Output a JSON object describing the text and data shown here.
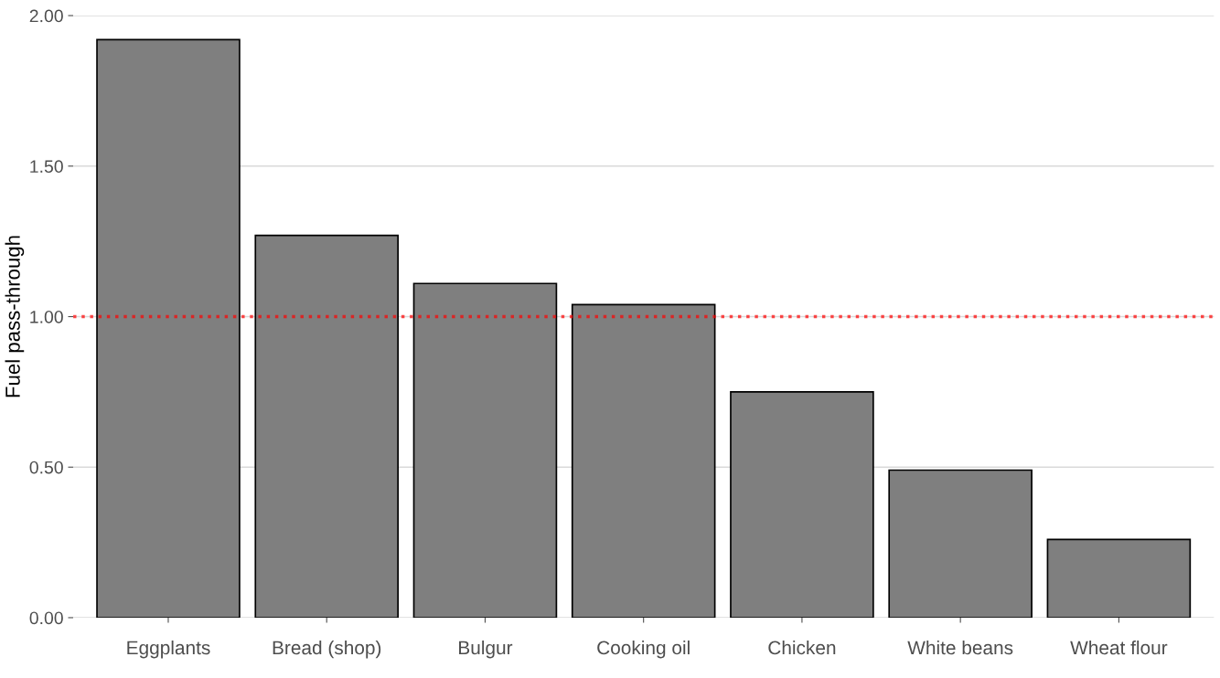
{
  "chart_data": {
    "type": "bar",
    "ylabel": "Fuel pass-through",
    "categories": [
      "Eggplants",
      "Bread (shop)",
      "Bulgur",
      "Cooking oil",
      "Chicken",
      "White beans",
      "Wheat flour"
    ],
    "values": [
      1.92,
      1.27,
      1.11,
      1.04,
      0.75,
      0.49,
      0.26
    ],
    "color": "#7f7f7f",
    "ylim": [
      0,
      2
    ],
    "yticks": [
      {
        "value": 0,
        "label": "0.00"
      },
      {
        "value": 0.5,
        "label": "0.50"
      },
      {
        "value": 1,
        "label": "1.00"
      },
      {
        "value": 1.5,
        "label": "1.50"
      },
      {
        "value": 2,
        "label": "2.00"
      }
    ],
    "grid": "y",
    "ref_lines": [
      {
        "axis": "y",
        "value": 1,
        "color": "#ff0000",
        "line_style": "dotted"
      }
    ]
  }
}
